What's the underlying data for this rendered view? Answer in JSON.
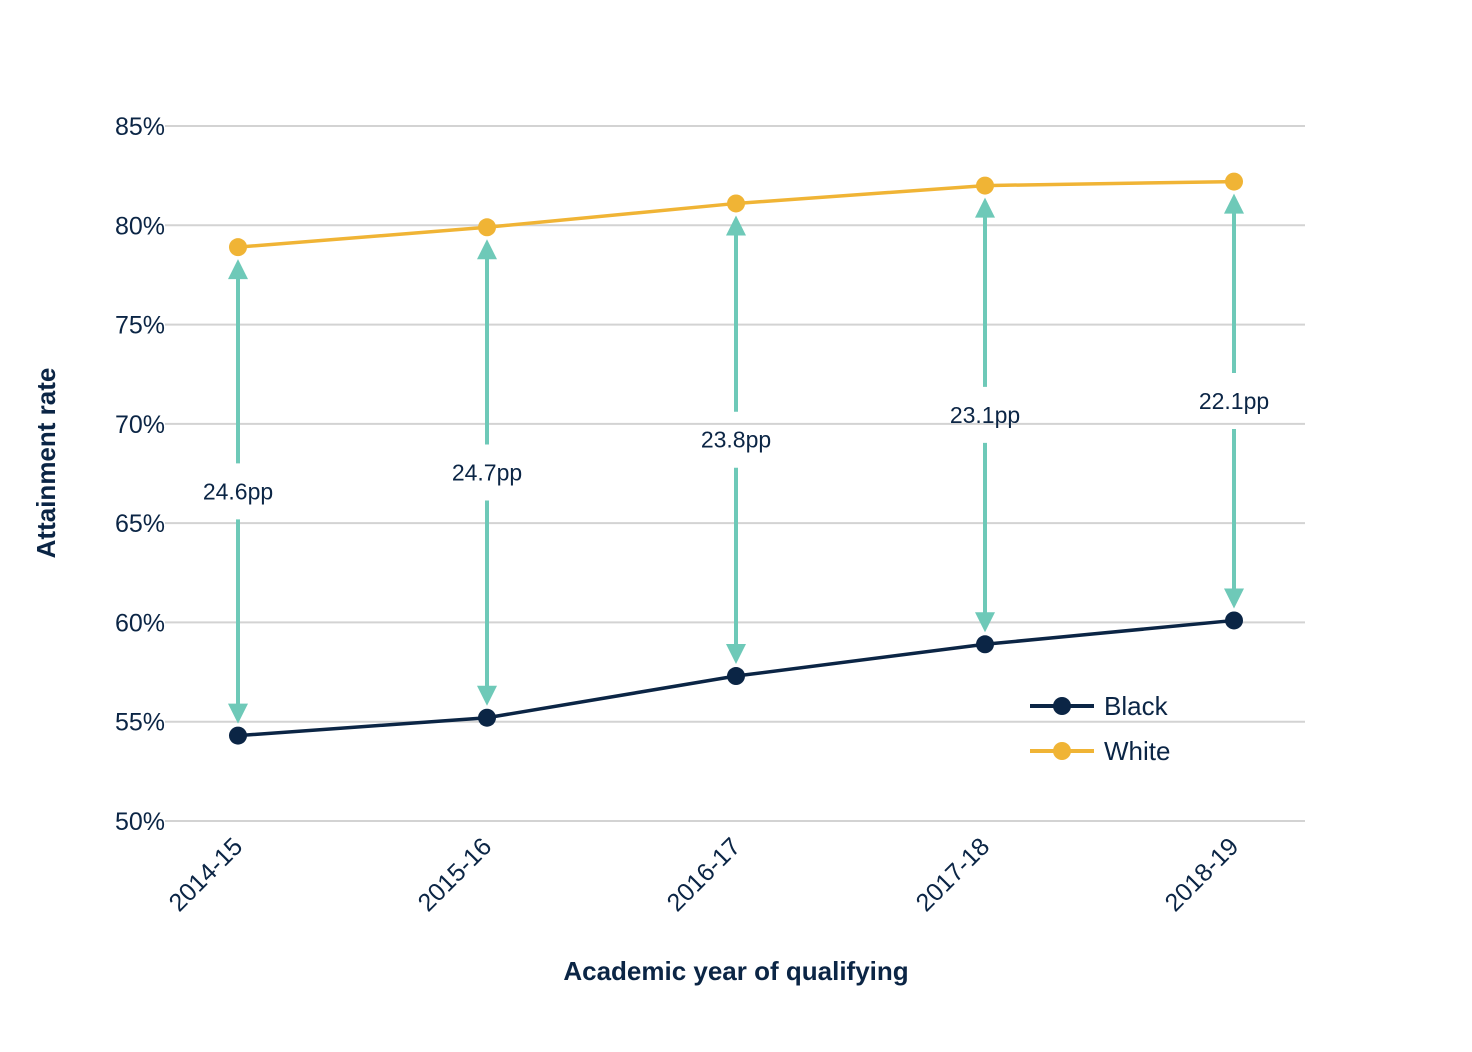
{
  "chart_data": {
    "type": "line",
    "title": "",
    "xlabel": "Academic year of qualifying",
    "ylabel": "Attainment rate",
    "categories": [
      "2014-15",
      "2015-16",
      "2016-17",
      "2017-18",
      "2018-19"
    ],
    "series": [
      {
        "name": "Black",
        "values": [
          54.3,
          55.2,
          57.3,
          58.9,
          60.1
        ],
        "color": "#0b2545"
      },
      {
        "name": "White",
        "values": [
          78.9,
          79.9,
          81.1,
          82.0,
          82.2
        ],
        "color": "#f0b435"
      }
    ],
    "gap_labels": [
      "24.6pp",
      "24.7pp",
      "23.8pp",
      "23.1pp",
      "22.1pp"
    ],
    "gap_color": "#6ec9b8",
    "ylim": [
      50,
      85
    ],
    "yticks": [
      50,
      55,
      60,
      65,
      70,
      75,
      80,
      85
    ],
    "ytick_labels": [
      "50%",
      "55%",
      "60%",
      "65%",
      "70%",
      "75%",
      "80%",
      "85%"
    ],
    "grid": true,
    "legend": "bottom-right"
  }
}
